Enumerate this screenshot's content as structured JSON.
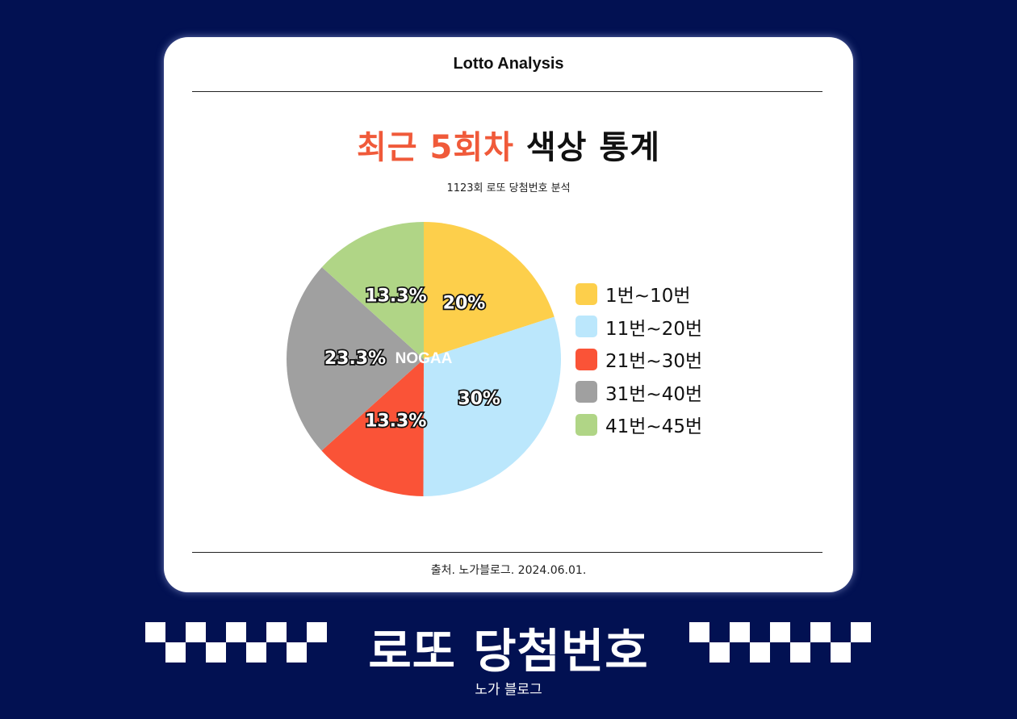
{
  "card": {
    "header_title": "Lotto Analysis",
    "title_accent": "최근 5회차",
    "title_rest": " 색상 통계",
    "subtitle": "1123회 로또 당첨번호 분석",
    "footer": "출처. 노가블로그. 2024.06.01."
  },
  "chart_data": {
    "type": "pie",
    "center_label": "NOGAA",
    "slices": [
      {
        "label": "1번~10번",
        "value": 20,
        "value_label": "20%",
        "color": "#fdcf4b"
      },
      {
        "label": "11번~20번",
        "value": 30,
        "value_label": "30%",
        "color": "#bbe7fc"
      },
      {
        "label": "21번~30번",
        "value": 13.3,
        "value_label": "13.3%",
        "color": "#fa5337"
      },
      {
        "label": "31번~40번",
        "value": 23.3,
        "value_label": "23.3%",
        "color": "#a0a0a0"
      },
      {
        "label": "41번~45번",
        "value": 13.3,
        "value_label": "13.3%",
        "color": "#b0d586"
      }
    ],
    "legend_position": "right"
  },
  "banner": {
    "title": "로또 당첨번호",
    "subtitle": "노가 블로그"
  }
}
